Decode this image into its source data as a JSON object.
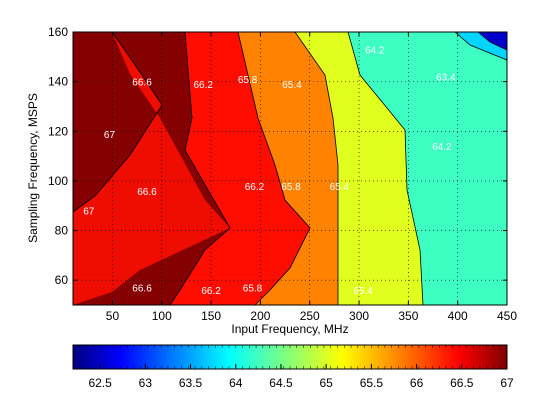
{
  "chart_data": {
    "type": "contour",
    "xlabel": "Input Frequency, MHz",
    "ylabel": "Sampling Frequency, MSPS",
    "xlim": [
      10,
      450
    ],
    "ylim": [
      50,
      160
    ],
    "xticks": [
      50,
      100,
      150,
      200,
      250,
      300,
      350,
      400,
      450
    ],
    "yticks": [
      60,
      80,
      100,
      120,
      140,
      160
    ],
    "grid": true,
    "colorbar": {
      "orientation": "horizontal",
      "position": "bottom",
      "range": [
        62.2,
        67
      ],
      "ticks": [
        62.5,
        63,
        63.5,
        64,
        64.5,
        65,
        65.5,
        66,
        66.5,
        67
      ],
      "colormap": "jet"
    },
    "levels": [
      {
        "value": 62.6,
        "color": "#0000cc"
      },
      {
        "value": 63.4,
        "color": "#0065ff"
      },
      {
        "value": 64.2,
        "color": "#3dffc2"
      },
      {
        "value": 65.0,
        "color": "#e1ff1e"
      },
      {
        "value": 65.8,
        "color": "#ff8200"
      },
      {
        "value": 66.6,
        "color": "#ee0d00"
      },
      {
        "value": 67.0,
        "color": "#850000"
      }
    ],
    "contour_labels": [
      {
        "text": "67",
        "x": 47,
        "y": 119
      },
      {
        "text": "67",
        "x": 26,
        "y": 88
      },
      {
        "text": "66.6",
        "x": 80,
        "y": 140
      },
      {
        "text": "66.6",
        "x": 85,
        "y": 96
      },
      {
        "text": "66.6",
        "x": 80,
        "y": 57
      },
      {
        "text": "66.2",
        "x": 142,
        "y": 139
      },
      {
        "text": "66.2",
        "x": 194,
        "y": 98
      },
      {
        "text": "66.2",
        "x": 150,
        "y": 56
      },
      {
        "text": "65.8",
        "x": 187,
        "y": 141
      },
      {
        "text": "65.8",
        "x": 231,
        "y": 98
      },
      {
        "text": "65.8",
        "x": 192,
        "y": 57
      },
      {
        "text": "65.4",
        "x": 232,
        "y": 139
      },
      {
        "text": "65.4",
        "x": 280,
        "y": 98
      },
      {
        "text": "65.4",
        "x": 304,
        "y": 56
      },
      {
        "text": "64.2",
        "x": 316,
        "y": 153
      },
      {
        "text": "63.4",
        "x": 388,
        "y": 142
      },
      {
        "text": "64.2",
        "x": 384,
        "y": 114
      }
    ]
  }
}
